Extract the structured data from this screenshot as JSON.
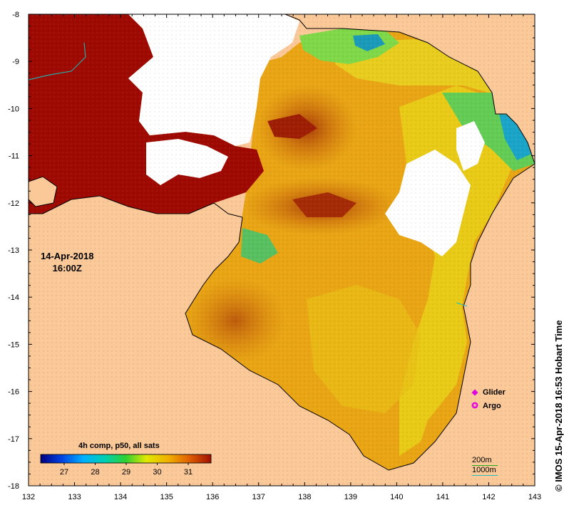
{
  "map": {
    "date_line1": "14-Apr-2018",
    "date_line2": "16:00Z",
    "credit": "IMOS 15-Apr-2018 16:53 Hobart Time",
    "copyright_symbol": "©",
    "x_ticks": [
      "132",
      "133",
      "134",
      "135",
      "136",
      "137",
      "138",
      "139",
      "140",
      "141",
      "142",
      "143"
    ],
    "y_ticks": [
      "-8",
      "-9",
      "-10",
      "-11",
      "-12",
      "-13",
      "-14",
      "-15",
      "-16",
      "-17",
      "-18"
    ],
    "colors": {
      "land": "#fbc898",
      "cloud": "#ffffff",
      "very_warm": "#9e0a02",
      "warm": "#cf5a0a",
      "mid": "#e9a10f",
      "cool": "#e8d814",
      "cooler": "#8fdf3a",
      "coolest": "#1aa0b8"
    }
  },
  "legend": {
    "title": "4h comp, p50, all sats",
    "ticks": [
      "27",
      "28",
      "29",
      "30",
      "31"
    ],
    "colors": [
      "#000080",
      "#0030d0",
      "#00a0ff",
      "#00e0e0",
      "#20d040",
      "#d8e800",
      "#f0b000",
      "#e86000",
      "#a01000"
    ]
  },
  "symbols": {
    "glider_label": "Glider",
    "argo_label": "Argo",
    "glider_icon": "diamond-icon",
    "argo_icon": "circle-icon",
    "color": "#e000e0"
  },
  "scale": {
    "depth_200": "200m",
    "depth_1000": "1000m",
    "color_200": "#22aa22",
    "color_1000": "#22c0c0"
  }
}
